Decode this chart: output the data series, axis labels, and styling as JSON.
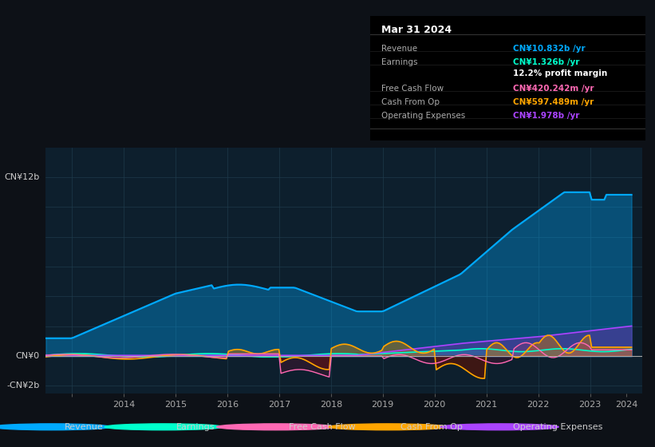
{
  "bg_color": "#0d1117",
  "plot_bg_color": "#0d1f2d",
  "grid_color": "#1e3a4a",
  "ylim_min": -2500000000.0,
  "ylim_max": 14000000000.0,
  "xlim_min": 2013.0,
  "xlim_max": 2024.5,
  "ylabel_top": "CN¥12b",
  "ylabel_zero": "CN¥0",
  "ylabel_neg": "-CN¥2b",
  "legend": [
    {
      "label": "Revenue",
      "color": "#00aaff"
    },
    {
      "label": "Earnings",
      "color": "#00ffcc"
    },
    {
      "label": "Free Cash Flow",
      "color": "#ff69b4"
    },
    {
      "label": "Cash From Op",
      "color": "#ffa500"
    },
    {
      "label": "Operating Expenses",
      "color": "#aa44ff"
    }
  ],
  "info_box_title": "Mar 31 2024",
  "info_rows": [
    {
      "label": "Revenue",
      "value": "CN¥10.832b /yr",
      "color": "#00aaff"
    },
    {
      "label": "Earnings",
      "value": "CN¥1.326b /yr",
      "color": "#00ffcc"
    },
    {
      "label": "",
      "value": "12.2% profit margin",
      "color": "#ffffff"
    },
    {
      "label": "Free Cash Flow",
      "value": "CN¥420.242m /yr",
      "color": "#ff69b4"
    },
    {
      "label": "Cash From Op",
      "value": "CN¥597.489m /yr",
      "color": "#ffa500"
    },
    {
      "label": "Operating Expenses",
      "value": "CN¥1.978b /yr",
      "color": "#aa44ff"
    }
  ]
}
